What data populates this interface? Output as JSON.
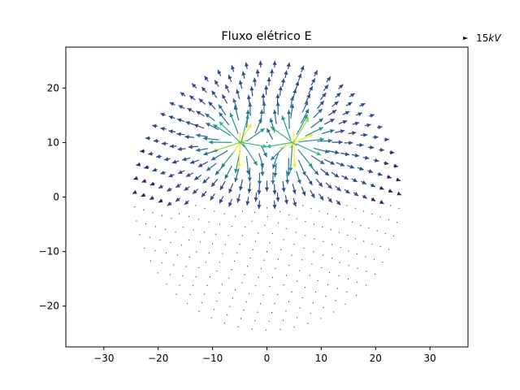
{
  "chart_data": {
    "type": "quiver",
    "title": "Fluxo elétrico E",
    "xlabel": "",
    "ylabel": "",
    "xlim": [
      -37,
      37
    ],
    "ylim": [
      -27.5,
      27.5
    ],
    "x_ticks": [
      -30,
      -20,
      -10,
      0,
      10,
      20,
      30
    ],
    "y_ticks": [
      -20,
      -10,
      0,
      10,
      20
    ],
    "grid": false,
    "colormap": "viridis",
    "key": {
      "text": "15kV",
      "prefix": "15",
      "unit_italic": "kV",
      "value": 15
    },
    "charges": [
      {
        "x": -5,
        "y": 10,
        "sign": "positive"
      },
      {
        "x": 5,
        "y": 10,
        "sign": "positive"
      }
    ],
    "field_region": {
      "center": [
        0,
        0
      ],
      "radius": 26,
      "arrows_drawn": "upper hemisphere with visible vectors, lower region with point-like markers"
    },
    "cmap_colors": [
      "#3b1f6e",
      "#2f4a8a",
      "#26708e",
      "#1f968b",
      "#35b779",
      "#8fd744",
      "#fde725"
    ]
  }
}
